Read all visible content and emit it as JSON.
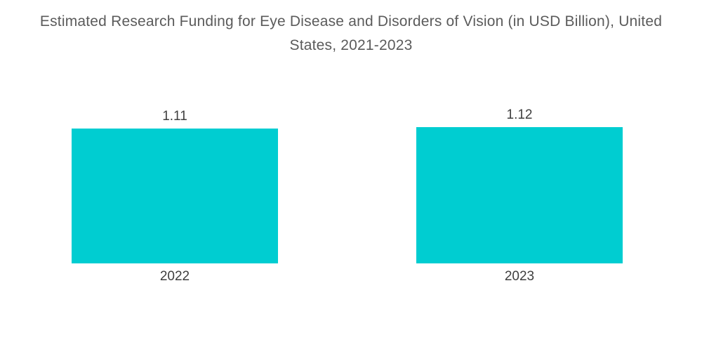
{
  "title": "Estimated Research Funding for Eye Disease and Disorders of Vision (in USD Billion), United States, 2021-2023",
  "colors": {
    "bar": "#00CDD1",
    "title_text": "#5B5B5B",
    "label_text": "#3F3F3F",
    "background": "#FFFFFF"
  },
  "chart_data": {
    "type": "bar",
    "title": "Estimated Research Funding for Eye Disease and Disorders of Vision (in USD Billion), United States, 2021-2023",
    "categories": [
      "2022",
      "2023"
    ],
    "values": [
      1.11,
      1.12
    ],
    "value_labels": [
      "1.11",
      "1.12"
    ],
    "xlabel": "",
    "ylabel": "",
    "legend": "none",
    "grid": "off",
    "axes_visible": false,
    "bar_color": "#00CDD1"
  }
}
